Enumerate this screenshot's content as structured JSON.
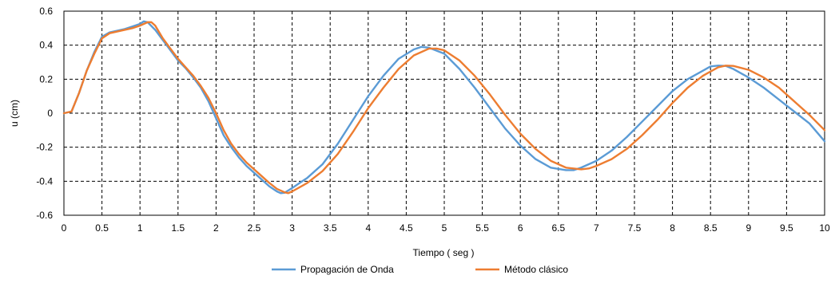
{
  "chart_data": {
    "type": "line",
    "xlabel": "Tiempo ( seg )",
    "ylabel": "u (cm)",
    "xlim": [
      0,
      10
    ],
    "ylim": [
      -0.6,
      0.6
    ],
    "x_ticks": [
      "0",
      "0.5",
      "1",
      "1.5",
      "2",
      "2.5",
      "3",
      "3.5",
      "4",
      "4.5",
      "5",
      "5.5",
      "6",
      "6.5",
      "7",
      "7.5",
      "8",
      "8.5",
      "9",
      "9.5",
      "10"
    ],
    "y_ticks": [
      "-0.6",
      "-0.4",
      "-0.2",
      "0",
      "0.2",
      "0.4",
      "0.6"
    ],
    "grid": true,
    "legend_position": "bottom-center",
    "series": [
      {
        "name": "Propagación de Onda",
        "color": "#5B9BD5",
        "points": [
          [
            0,
            0
          ],
          [
            0.1,
            0.01
          ],
          [
            0.2,
            0.12
          ],
          [
            0.3,
            0.25
          ],
          [
            0.4,
            0.36
          ],
          [
            0.5,
            0.45
          ],
          [
            0.6,
            0.475
          ],
          [
            0.7,
            0.485
          ],
          [
            0.8,
            0.495
          ],
          [
            0.9,
            0.51
          ],
          [
            1.0,
            0.525
          ],
          [
            1.05,
            0.54
          ],
          [
            1.1,
            0.535
          ],
          [
            1.2,
            0.49
          ],
          [
            1.3,
            0.43
          ],
          [
            1.4,
            0.37
          ],
          [
            1.5,
            0.31
          ],
          [
            1.6,
            0.265
          ],
          [
            1.7,
            0.21
          ],
          [
            1.8,
            0.15
          ],
          [
            1.9,
            0.07
          ],
          [
            2.0,
            -0.03
          ],
          [
            2.1,
            -0.13
          ],
          [
            2.2,
            -0.2
          ],
          [
            2.3,
            -0.26
          ],
          [
            2.4,
            -0.31
          ],
          [
            2.5,
            -0.35
          ],
          [
            2.6,
            -0.39
          ],
          [
            2.7,
            -0.43
          ],
          [
            2.8,
            -0.46
          ],
          [
            2.85,
            -0.47
          ],
          [
            2.9,
            -0.468
          ],
          [
            3.0,
            -0.44
          ],
          [
            3.2,
            -0.38
          ],
          [
            3.4,
            -0.3
          ],
          [
            3.6,
            -0.18
          ],
          [
            3.8,
            -0.04
          ],
          [
            4.0,
            0.1
          ],
          [
            4.2,
            0.22
          ],
          [
            4.4,
            0.32
          ],
          [
            4.6,
            0.375
          ],
          [
            4.7,
            0.39
          ],
          [
            4.8,
            0.385
          ],
          [
            5.0,
            0.35
          ],
          [
            5.2,
            0.26
          ],
          [
            5.4,
            0.15
          ],
          [
            5.6,
            0.03
          ],
          [
            5.8,
            -0.09
          ],
          [
            6.0,
            -0.19
          ],
          [
            6.2,
            -0.27
          ],
          [
            6.4,
            -0.32
          ],
          [
            6.6,
            -0.335
          ],
          [
            6.7,
            -0.335
          ],
          [
            6.8,
            -0.32
          ],
          [
            7.0,
            -0.28
          ],
          [
            7.2,
            -0.22
          ],
          [
            7.4,
            -0.14
          ],
          [
            7.6,
            -0.05
          ],
          [
            7.8,
            0.04
          ],
          [
            8.0,
            0.13
          ],
          [
            8.2,
            0.2
          ],
          [
            8.4,
            0.25
          ],
          [
            8.5,
            0.275
          ],
          [
            8.6,
            0.28
          ],
          [
            8.7,
            0.278
          ],
          [
            8.8,
            0.26
          ],
          [
            9.0,
            0.21
          ],
          [
            9.2,
            0.15
          ],
          [
            9.4,
            0.08
          ],
          [
            9.6,
            0.01
          ],
          [
            9.8,
            -0.06
          ],
          [
            10.0,
            -0.165
          ]
        ]
      },
      {
        "name": "Método clásico",
        "color": "#ED7D31",
        "points": [
          [
            0,
            0
          ],
          [
            0.1,
            0.01
          ],
          [
            0.2,
            0.12
          ],
          [
            0.3,
            0.25
          ],
          [
            0.4,
            0.35
          ],
          [
            0.5,
            0.44
          ],
          [
            0.6,
            0.47
          ],
          [
            0.7,
            0.48
          ],
          [
            0.8,
            0.49
          ],
          [
            0.9,
            0.5
          ],
          [
            1.0,
            0.515
          ],
          [
            1.1,
            0.535
          ],
          [
            1.15,
            0.535
          ],
          [
            1.2,
            0.515
          ],
          [
            1.3,
            0.44
          ],
          [
            1.4,
            0.38
          ],
          [
            1.5,
            0.32
          ],
          [
            1.6,
            0.27
          ],
          [
            1.7,
            0.22
          ],
          [
            1.8,
            0.16
          ],
          [
            1.9,
            0.09
          ],
          [
            2.0,
            0.0
          ],
          [
            2.1,
            -0.1
          ],
          [
            2.2,
            -0.18
          ],
          [
            2.3,
            -0.24
          ],
          [
            2.4,
            -0.29
          ],
          [
            2.5,
            -0.33
          ],
          [
            2.6,
            -0.37
          ],
          [
            2.7,
            -0.41
          ],
          [
            2.8,
            -0.445
          ],
          [
            2.9,
            -0.465
          ],
          [
            2.95,
            -0.47
          ],
          [
            3.0,
            -0.46
          ],
          [
            3.2,
            -0.41
          ],
          [
            3.4,
            -0.34
          ],
          [
            3.6,
            -0.24
          ],
          [
            3.8,
            -0.11
          ],
          [
            4.0,
            0.03
          ],
          [
            4.2,
            0.15
          ],
          [
            4.4,
            0.26
          ],
          [
            4.6,
            0.34
          ],
          [
            4.8,
            0.38
          ],
          [
            4.9,
            0.38
          ],
          [
            5.0,
            0.37
          ],
          [
            5.2,
            0.31
          ],
          [
            5.4,
            0.22
          ],
          [
            5.6,
            0.11
          ],
          [
            5.8,
            -0.01
          ],
          [
            6.0,
            -0.12
          ],
          [
            6.2,
            -0.21
          ],
          [
            6.4,
            -0.28
          ],
          [
            6.6,
            -0.32
          ],
          [
            6.8,
            -0.33
          ],
          [
            6.9,
            -0.325
          ],
          [
            7.0,
            -0.31
          ],
          [
            7.2,
            -0.27
          ],
          [
            7.4,
            -0.21
          ],
          [
            7.6,
            -0.13
          ],
          [
            7.8,
            -0.04
          ],
          [
            8.0,
            0.06
          ],
          [
            8.2,
            0.15
          ],
          [
            8.4,
            0.22
          ],
          [
            8.6,
            0.27
          ],
          [
            8.7,
            0.28
          ],
          [
            8.8,
            0.278
          ],
          [
            9.0,
            0.255
          ],
          [
            9.2,
            0.21
          ],
          [
            9.4,
            0.15
          ],
          [
            9.6,
            0.07
          ],
          [
            9.8,
            -0.01
          ],
          [
            10.0,
            -0.1
          ]
        ]
      }
    ]
  }
}
